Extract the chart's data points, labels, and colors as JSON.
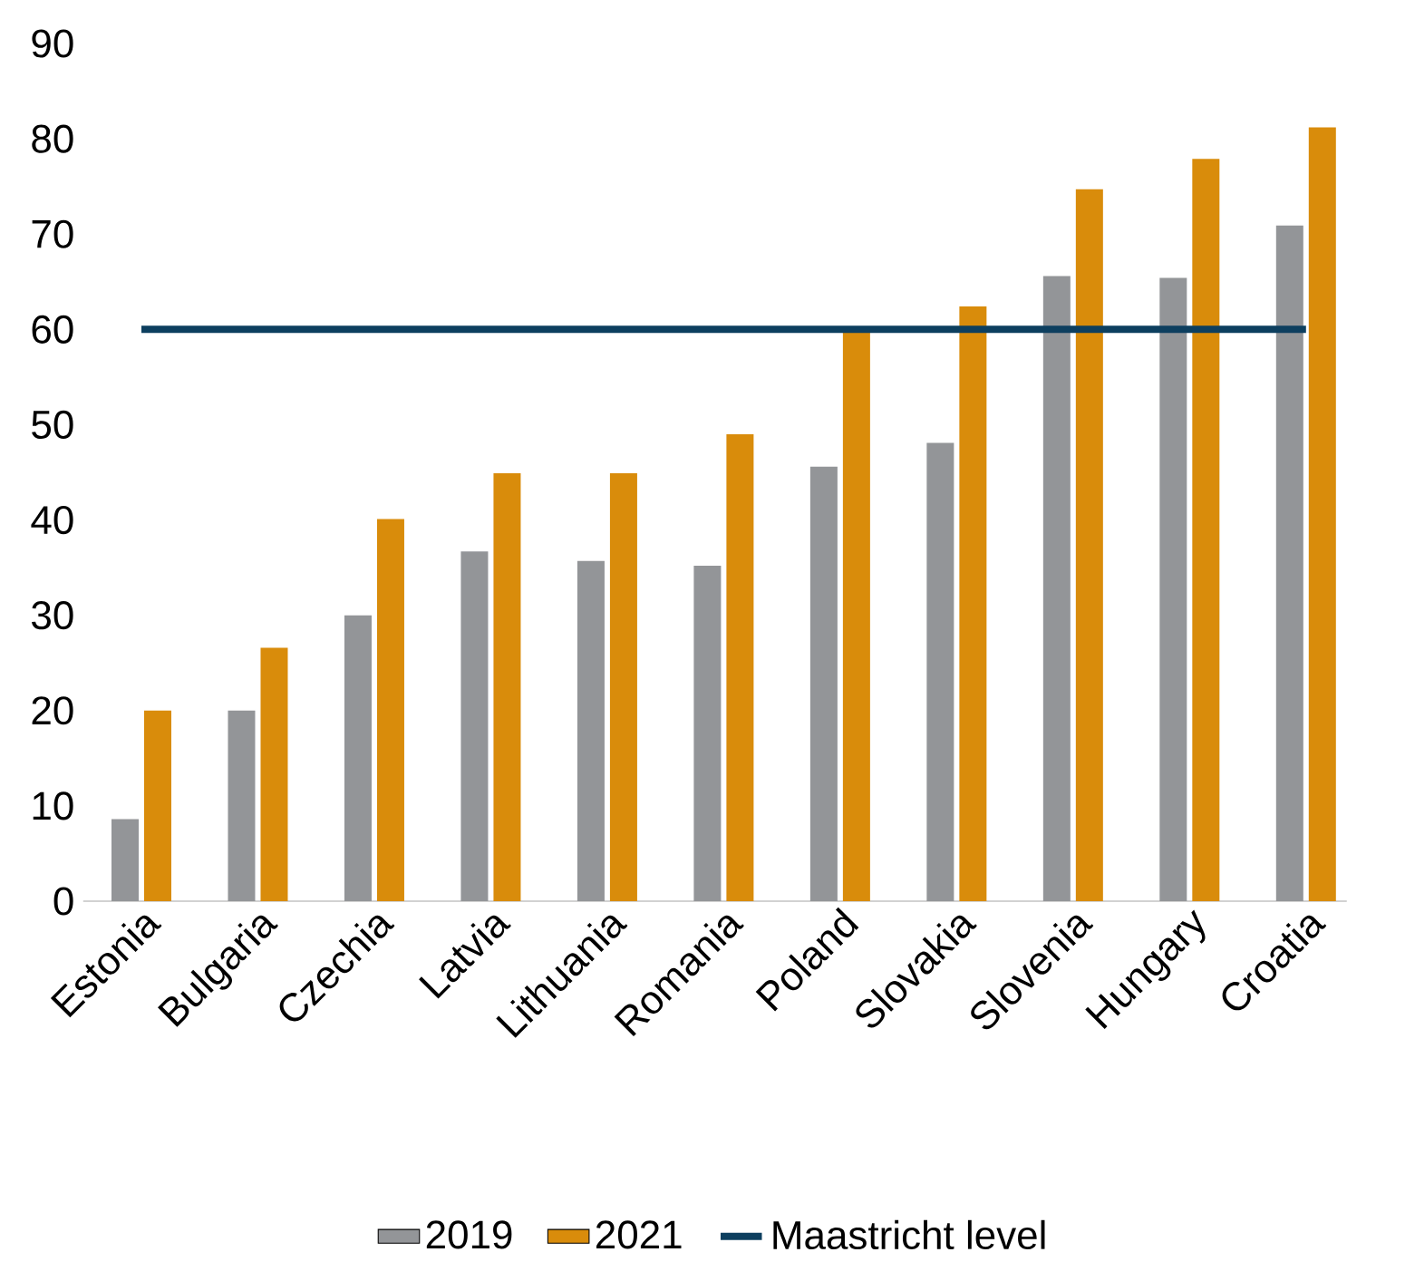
{
  "chart_data": {
    "type": "bar",
    "categories": [
      "Estonia",
      "Bulgaria",
      "Czechia",
      "Latvia",
      "Lithuania",
      "Romania",
      "Poland",
      "Slovakia",
      "Slovenia",
      "Hungary",
      "Croatia"
    ],
    "series": [
      {
        "name": "2019",
        "color": "#939598",
        "values": [
          8.6,
          20.0,
          30.0,
          36.7,
          35.7,
          35.2,
          45.6,
          48.1,
          65.6,
          65.4,
          70.9
        ]
      },
      {
        "name": "2021",
        "color": "#d98c0b",
        "values": [
          20.0,
          26.6,
          40.1,
          44.9,
          44.9,
          49.0,
          59.9,
          62.4,
          74.7,
          77.9,
          81.2
        ]
      }
    ],
    "ref_lines": [
      {
        "axis": "y",
        "value": 60,
        "label": "Maastricht level",
        "color": "#0d3f5f"
      }
    ],
    "ylim": [
      0,
      90
    ],
    "yticks": [
      0,
      10,
      20,
      30,
      40,
      50,
      60,
      70,
      80,
      90
    ],
    "grid": false,
    "legend": "bottom"
  }
}
